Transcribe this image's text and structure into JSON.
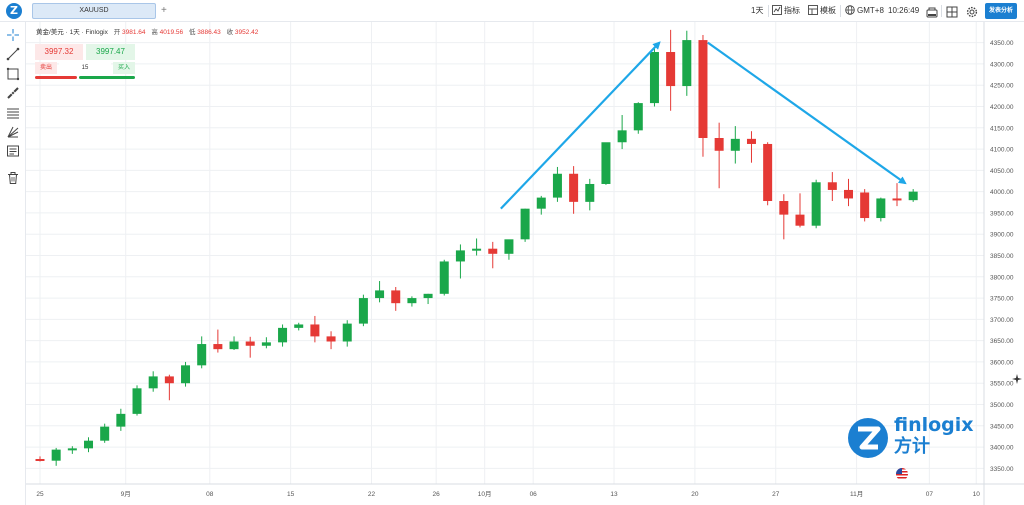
{
  "topbar": {
    "logo": "Z",
    "symbol_tab": "XAUUSD",
    "add_tab": "+",
    "interval": "1天",
    "indicators": "指标",
    "templates": "模板",
    "timezone": "GMT+8",
    "time": "10:26:49",
    "publish": "发表分析"
  },
  "legend": {
    "title": "黄金/美元 · 1天 · Finlogix",
    "open_label": "开",
    "open_value": "3981.64",
    "high_label": "高",
    "high_value": "4019.56",
    "low_label": "低",
    "low_value": "3886.43",
    "close_label": "收",
    "close_value": "3952.42"
  },
  "trade": {
    "sell_price": "3997.32",
    "buy_price": "3997.47",
    "sell_label": "卖出",
    "quantity": "15",
    "buy_label": "买入"
  },
  "brand": {
    "name": "finlogix",
    "name_cn": "方计"
  },
  "colors": {
    "up": "#1aa74a",
    "down": "#e53935",
    "arrow": "#1ea7e8",
    "accent": "#1b7fd1"
  },
  "icons": [
    "crosshair-icon",
    "trendline-icon",
    "rectangle-icon",
    "measure-icon",
    "fib-icon",
    "gann-icon",
    "note-icon",
    "trash-icon",
    "chart-type-icon",
    "layout-icon",
    "fullscreen-icon",
    "settings-icon",
    "indicators-icon",
    "templates-icon",
    "globe-icon",
    "sparkle-icon"
  ],
  "chart_data": {
    "type": "candlestick",
    "y_ticks": [
      "4350.00",
      "4300.00",
      "4250.00",
      "4200.00",
      "4150.00",
      "4100.00",
      "4050.00",
      "4000.00",
      "3950.00",
      "3900.00",
      "3850.00",
      "3800.00",
      "3750.00",
      "3700.00",
      "3650.00",
      "3600.00",
      "3550.00",
      "3500.00",
      "3450.00",
      "3400.00",
      "3350.00"
    ],
    "ylim": [
      3325,
      4375
    ],
    "x_ticks": [
      "25",
      "9月",
      "08",
      "15",
      "22",
      "26",
      "10月",
      "06",
      "13",
      "20",
      "27",
      "11月",
      "07",
      "10"
    ],
    "grid": true,
    "candles": [
      {
        "o": 3372,
        "h": 3378,
        "l": 3366,
        "c": 3368
      },
      {
        "o": 3368,
        "h": 3398,
        "l": 3356,
        "c": 3394
      },
      {
        "o": 3394,
        "h": 3402,
        "l": 3384,
        "c": 3397
      },
      {
        "o": 3397,
        "h": 3423,
        "l": 3388,
        "c": 3415
      },
      {
        "o": 3415,
        "h": 3455,
        "l": 3410,
        "c": 3448
      },
      {
        "o": 3448,
        "h": 3490,
        "l": 3438,
        "c": 3478
      },
      {
        "o": 3478,
        "h": 3545,
        "l": 3474,
        "c": 3538
      },
      {
        "o": 3538,
        "h": 3578,
        "l": 3530,
        "c": 3566
      },
      {
        "o": 3566,
        "h": 3570,
        "l": 3510,
        "c": 3550
      },
      {
        "o": 3550,
        "h": 3600,
        "l": 3542,
        "c": 3592
      },
      {
        "o": 3592,
        "h": 3660,
        "l": 3585,
        "c": 3642
      },
      {
        "o": 3642,
        "h": 3676,
        "l": 3622,
        "c": 3630
      },
      {
        "o": 3630,
        "h": 3660,
        "l": 3628,
        "c": 3648
      },
      {
        "o": 3648,
        "h": 3659,
        "l": 3610,
        "c": 3638
      },
      {
        "o": 3638,
        "h": 3658,
        "l": 3632,
        "c": 3646
      },
      {
        "o": 3646,
        "h": 3688,
        "l": 3636,
        "c": 3680
      },
      {
        "o": 3680,
        "h": 3692,
        "l": 3674,
        "c": 3688
      },
      {
        "o": 3688,
        "h": 3708,
        "l": 3646,
        "c": 3660
      },
      {
        "o": 3660,
        "h": 3672,
        "l": 3630,
        "c": 3648
      },
      {
        "o": 3648,
        "h": 3698,
        "l": 3636,
        "c": 3690
      },
      {
        "o": 3690,
        "h": 3758,
        "l": 3684,
        "c": 3750
      },
      {
        "o": 3750,
        "h": 3790,
        "l": 3740,
        "c": 3768
      },
      {
        "o": 3768,
        "h": 3776,
        "l": 3720,
        "c": 3738
      },
      {
        "o": 3738,
        "h": 3754,
        "l": 3730,
        "c": 3750
      },
      {
        "o": 3750,
        "h": 3760,
        "l": 3736,
        "c": 3760
      },
      {
        "o": 3760,
        "h": 3840,
        "l": 3756,
        "c": 3836
      },
      {
        "o": 3836,
        "h": 3876,
        "l": 3796,
        "c": 3862
      },
      {
        "o": 3862,
        "h": 3890,
        "l": 3850,
        "c": 3866
      },
      {
        "o": 3866,
        "h": 3882,
        "l": 3820,
        "c": 3854
      },
      {
        "o": 3854,
        "h": 3880,
        "l": 3840,
        "c": 3888
      },
      {
        "o": 3888,
        "h": 3960,
        "l": 3882,
        "c": 3960
      },
      {
        "o": 3960,
        "h": 3990,
        "l": 3946,
        "c": 3986
      },
      {
        "o": 3986,
        "h": 4058,
        "l": 3976,
        "c": 4042
      },
      {
        "o": 4042,
        "h": 4060,
        "l": 3948,
        "c": 3976
      },
      {
        "o": 3976,
        "h": 4030,
        "l": 3956,
        "c": 4018
      },
      {
        "o": 4018,
        "h": 4112,
        "l": 4016,
        "c": 4116
      },
      {
        "o": 4116,
        "h": 4180,
        "l": 4100,
        "c": 4144
      },
      {
        "o": 4144,
        "h": 4210,
        "l": 4136,
        "c": 4208
      },
      {
        "o": 4208,
        "h": 4340,
        "l": 4200,
        "c": 4328
      },
      {
        "o": 4328,
        "h": 4380,
        "l": 4190,
        "c": 4248
      },
      {
        "o": 4248,
        "h": 4378,
        "l": 4225,
        "c": 4356
      },
      {
        "o": 4356,
        "h": 4368,
        "l": 4082,
        "c": 4126
      },
      {
        "o": 4126,
        "h": 4162,
        "l": 4008,
        "c": 4096
      },
      {
        "o": 4096,
        "h": 4154,
        "l": 4066,
        "c": 4124
      },
      {
        "o": 4124,
        "h": 4142,
        "l": 4068,
        "c": 4112
      },
      {
        "o": 4112,
        "h": 4116,
        "l": 3968,
        "c": 3978
      },
      {
        "o": 3978,
        "h": 3994,
        "l": 3888,
        "c": 3946
      },
      {
        "o": 3946,
        "h": 3996,
        "l": 3916,
        "c": 3920
      },
      {
        "o": 3920,
        "h": 4028,
        "l": 3914,
        "c": 4022
      },
      {
        "o": 4022,
        "h": 4046,
        "l": 3978,
        "c": 4004
      },
      {
        "o": 4004,
        "h": 4030,
        "l": 3966,
        "c": 3984
      },
      {
        "o": 3998,
        "h": 4006,
        "l": 3930,
        "c": 3938
      },
      {
        "o": 3938,
        "h": 3986,
        "l": 3930,
        "c": 3984
      },
      {
        "o": 3984,
        "h": 4020,
        "l": 3966,
        "c": 3980
      },
      {
        "o": 3980,
        "h": 4006,
        "l": 3976,
        "c": 4000
      }
    ],
    "annotations": [
      {
        "type": "arrow",
        "from": {
          "index": 28.5,
          "y": 3960
        },
        "to": {
          "index": 38.3,
          "y": 4350
        }
      },
      {
        "type": "arrow",
        "from": {
          "index": 41.3,
          "y": 4350
        },
        "to": {
          "index": 53.5,
          "y": 4020
        }
      }
    ]
  }
}
